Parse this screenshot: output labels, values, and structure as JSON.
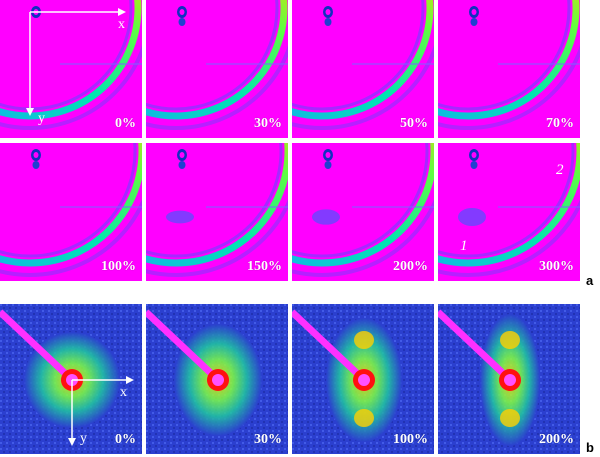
{
  "saxs_panels": [
    {
      "label": "0%"
    },
    {
      "label": "30%"
    },
    {
      "label": "50%"
    },
    {
      "label": "70%"
    },
    {
      "label": "100%"
    },
    {
      "label": "150%"
    },
    {
      "label": "200%"
    },
    {
      "label": "300%"
    }
  ],
  "saxs_axes": {
    "x": "x",
    "y": "y"
  },
  "saxs_annotations": {
    "reflection_1": "1",
    "reflection_2": "2"
  },
  "saxs_figure_letter": "a",
  "waxs_panels": [
    {
      "label": "0%"
    },
    {
      "label": "30%"
    },
    {
      "label": "100%"
    },
    {
      "label": "200%"
    }
  ],
  "waxs_axes": {
    "x": "x",
    "y": "y"
  },
  "waxs_figure_letter": "b",
  "colors": {
    "magenta_bg": "#ff00ff",
    "blue_bg": "#2b3fcf",
    "ring_green": "#00e0a0",
    "ring_red": "#ff2020"
  }
}
